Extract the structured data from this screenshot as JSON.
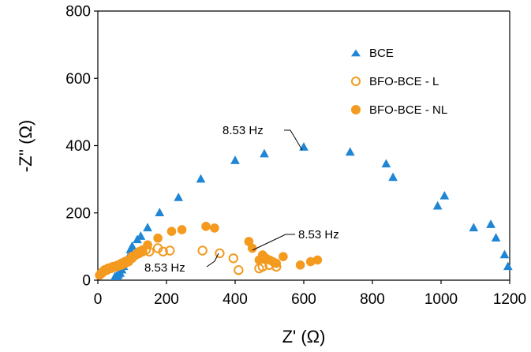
{
  "chart_data": {
    "type": "scatter",
    "xlabel": "Z' (Ω)",
    "ylabel": "-Z'' (Ω)",
    "xlim": [
      0,
      1200
    ],
    "ylim": [
      0,
      800
    ],
    "xticks": [
      "0",
      "200",
      "400",
      "600",
      "800",
      "1000",
      "1200"
    ],
    "yticks": [
      "0",
      "200",
      "400",
      "600",
      "800"
    ],
    "legend_position": "top-right",
    "series": [
      {
        "name": "BCE",
        "marker": "filled-triangle",
        "color": "#1f86d6",
        "x": [
          50,
          55,
          60,
          65,
          70,
          75,
          80,
          90,
          95,
          100,
          115,
          125,
          145,
          180,
          235,
          300,
          400,
          485,
          600,
          735,
          840,
          860,
          990,
          1010,
          1095,
          1145,
          1160,
          1185,
          1195
        ],
        "y": [
          10,
          12,
          15,
          20,
          30,
          40,
          55,
          70,
          90,
          100,
          120,
          130,
          155,
          200,
          245,
          300,
          355,
          375,
          395,
          380,
          345,
          305,
          220,
          250,
          155,
          165,
          125,
          75,
          40
        ]
      },
      {
        "name": "BFO-BCE - L",
        "marker": "open-circle",
        "color": "#f39a1f",
        "x": [
          10,
          15,
          20,
          25,
          30,
          35,
          40,
          45,
          50,
          55,
          60,
          65,
          70,
          80,
          90,
          100,
          110,
          120,
          130,
          140,
          150,
          175,
          190,
          210,
          305,
          355,
          395,
          410,
          470,
          480,
          500,
          520
        ],
        "y": [
          20,
          25,
          30,
          30,
          35,
          35,
          38,
          40,
          40,
          42,
          45,
          45,
          50,
          55,
          60,
          70,
          75,
          80,
          85,
          90,
          85,
          95,
          85,
          88,
          88,
          80,
          65,
          30,
          35,
          40,
          45,
          40
        ]
      },
      {
        "name": "BFO-BCE - NL",
        "marker": "filled-circle",
        "color": "#f39a1f",
        "x": [
          5,
          10,
          15,
          20,
          25,
          30,
          35,
          40,
          45,
          50,
          55,
          60,
          70,
          80,
          90,
          100,
          110,
          120,
          130,
          145,
          175,
          215,
          245,
          315,
          340,
          440,
          450,
          470,
          480,
          490,
          500,
          510,
          520,
          540,
          590,
          620,
          640
        ],
        "y": [
          15,
          20,
          25,
          28,
          30,
          32,
          35,
          35,
          38,
          40,
          40,
          42,
          45,
          50,
          55,
          65,
          75,
          85,
          90,
          105,
          125,
          145,
          150,
          160,
          155,
          115,
          95,
          60,
          75,
          65,
          60,
          55,
          50,
          70,
          45,
          55,
          60
        ]
      }
    ],
    "annotations": [
      {
        "text": "8.53 Hz",
        "series": "BCE",
        "x": 600,
        "y": 395
      },
      {
        "text": "8.53 Hz",
        "series": "BFO-BCE - NL",
        "x": 450,
        "y": 95
      },
      {
        "text": "8.53 Hz",
        "series": "BFO-BCE - L",
        "x": 355,
        "y": 80
      }
    ]
  }
}
